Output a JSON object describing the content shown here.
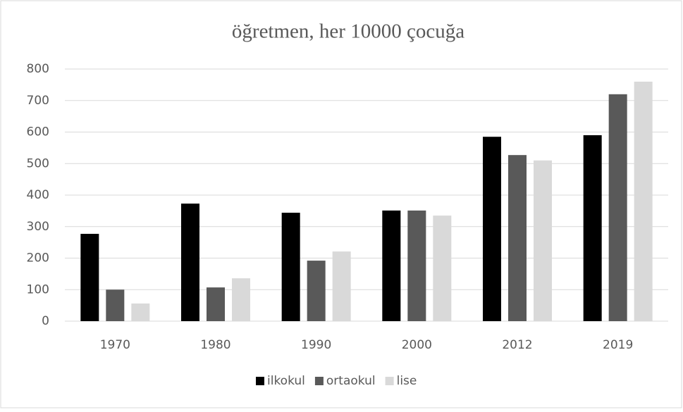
{
  "chart_data": {
    "type": "bar",
    "title": "öğretmen, her 10000 çocuğa",
    "categories": [
      "1970",
      "1980",
      "1990",
      "2000",
      "2012",
      "2019"
    ],
    "series": [
      {
        "name": "ilkokul",
        "color": "#000000",
        "values": [
          277,
          373,
          344,
          351,
          585,
          590
        ]
      },
      {
        "name": "ortaokul",
        "color": "#595959",
        "values": [
          100,
          107,
          192,
          351,
          527,
          720
        ]
      },
      {
        "name": "lise",
        "color": "#d9d9d9",
        "values": [
          56,
          136,
          221,
          335,
          510,
          760
        ]
      }
    ],
    "ylim": [
      0,
      800
    ],
    "yticks": [
      0,
      100,
      200,
      300,
      400,
      500,
      600,
      700,
      800
    ],
    "grid": true,
    "legend": "bottom"
  }
}
